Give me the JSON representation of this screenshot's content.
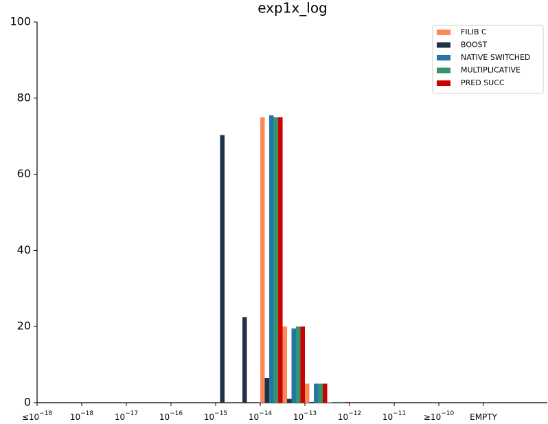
{
  "chart_data": {
    "type": "bar",
    "title": "exp1x_log",
    "x": [
      4,
      4.5,
      5,
      5.5,
      6,
      6.5
    ],
    "series": [
      {
        "name": "FILIB C",
        "color": "#fc8a57",
        "values": [
          0,
          0,
          75,
          20,
          5,
          0.1
        ]
      },
      {
        "name": "BOOST",
        "color": "#1f3247",
        "values": [
          70.3,
          22.5,
          6.5,
          1,
          0.2,
          0
        ]
      },
      {
        "name": "NATIVE SWITCHED",
        "color": "#2576a4",
        "values": [
          0,
          0,
          75.5,
          19.5,
          5,
          0.2
        ]
      },
      {
        "name": "MULTIPLICATIVE",
        "color": "#34956b",
        "values": [
          0,
          0,
          75,
          20,
          5,
          0.2
        ]
      },
      {
        "name": "PRED SUCC",
        "color": "#cc0000",
        "values": [
          0,
          0,
          75,
          20,
          5,
          0.2
        ]
      }
    ],
    "xlim": [
      0,
      11.43
    ],
    "xticks": [
      {
        "value": 0,
        "label": "≤10",
        "exponent": "−18"
      },
      {
        "value": 1,
        "label": "10",
        "exponent": "−18"
      },
      {
        "value": 2,
        "label": "10",
        "exponent": "−17"
      },
      {
        "value": 3,
        "label": "10",
        "exponent": "−16"
      },
      {
        "value": 4,
        "label": "10",
        "exponent": "−15"
      },
      {
        "value": 5,
        "label": "10",
        "exponent": "−14"
      },
      {
        "value": 6,
        "label": "10",
        "exponent": "−13"
      },
      {
        "value": 7,
        "label": "10",
        "exponent": "−12"
      },
      {
        "value": 8,
        "label": "10",
        "exponent": "−11"
      },
      {
        "value": 9,
        "label": "≥10",
        "exponent": "−10"
      },
      {
        "value": 10,
        "label": "EMPTY"
      }
    ],
    "ylim": [
      0,
      100
    ],
    "yticks": [
      0,
      20,
      40,
      60,
      80,
      100
    ],
    "legend": "upper right"
  }
}
